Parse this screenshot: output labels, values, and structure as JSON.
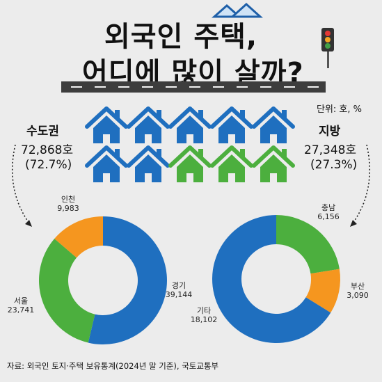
{
  "title": {
    "line1": "외국인 주택,",
    "line2": "어디에 많이 살까?"
  },
  "unit": "단위: 호, %",
  "capital": {
    "name": "수도권",
    "count": "72,868호",
    "percent": "(72.7%)"
  },
  "local": {
    "name": "지방",
    "count": "27,348호",
    "percent": "(27.3%)"
  },
  "house_icons": {
    "blue_count": 7,
    "green_count": 3,
    "blue_color": "#1f6fbf",
    "green_color": "#4caf3e"
  },
  "source": "자료: 외국인 토지·주택 보유통계(2024년 말 기준), 국토교통부",
  "chart_data": [
    {
      "type": "pie",
      "subtype": "donut",
      "segments": [
        {
          "name": "경기",
          "value": 39144,
          "label": "39,144",
          "color": "#1f6fbf"
        },
        {
          "name": "서울",
          "value": 23741,
          "label": "23,741",
          "color": "#4caf3e"
        },
        {
          "name": "인천",
          "value": 9983,
          "label": "9,983",
          "color": "#f5961f"
        }
      ]
    },
    {
      "type": "pie",
      "subtype": "donut",
      "segments": [
        {
          "name": "충남",
          "value": 6156,
          "label": "6,156",
          "color": "#4caf3e"
        },
        {
          "name": "부산",
          "value": 3090,
          "label": "3,090",
          "color": "#f5961f"
        },
        {
          "name": "기타",
          "value": 18102,
          "label": "18,102",
          "color": "#1f6fbf"
        }
      ]
    }
  ]
}
